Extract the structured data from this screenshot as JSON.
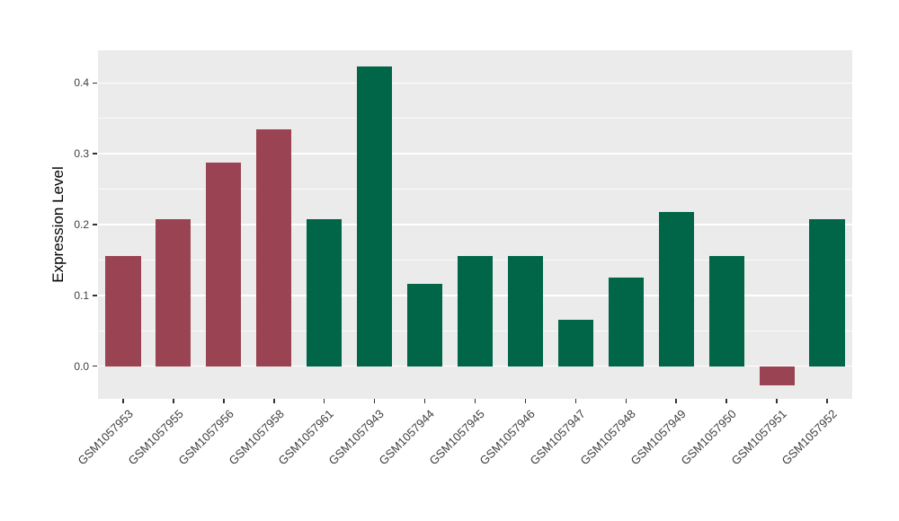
{
  "chart_data": {
    "type": "bar",
    "title": "",
    "xlabel": "",
    "ylabel": "Expression Level",
    "categories": [
      "GSM1057953",
      "GSM1057955",
      "GSM1057956",
      "GSM1057958",
      "GSM1057961",
      "GSM1057943",
      "GSM1057944",
      "GSM1057945",
      "GSM1057946",
      "GSM1057947",
      "GSM1057948",
      "GSM1057949",
      "GSM1057950",
      "GSM1057951",
      "GSM1057952"
    ],
    "values": [
      0.155,
      0.207,
      0.287,
      0.334,
      0.207,
      0.423,
      0.116,
      0.155,
      0.155,
      0.065,
      0.125,
      0.218,
      0.155,
      -0.027,
      0.207
    ],
    "groups": [
      "red",
      "red",
      "red",
      "red",
      "green",
      "green",
      "green",
      "green",
      "green",
      "green",
      "green",
      "green",
      "green",
      "red",
      "green"
    ],
    "group_colors": {
      "red": "#9A4453",
      "green": "#006647"
    },
    "ylim": [
      -0.046,
      0.446
    ],
    "yticks": [
      0.0,
      0.1,
      0.2,
      0.3,
      0.4
    ],
    "ytick_labels": [
      "0.0",
      "0.1",
      "0.2",
      "0.3",
      "0.4"
    ],
    "minor_ticks": [
      0.05,
      0.15,
      0.25,
      0.35
    ],
    "grid": true,
    "legend": "none",
    "x_label_rotation": 45,
    "panel_background": "#EBEBEB",
    "grid_color": "#FFFFFF",
    "axis_text_color": "#404040",
    "tick_mark_color": "#333333"
  }
}
